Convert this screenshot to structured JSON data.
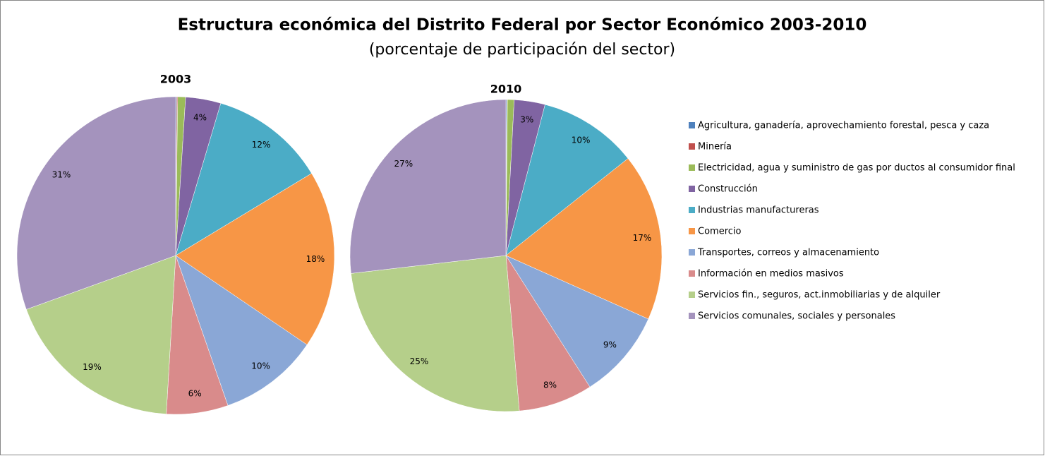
{
  "title": "Estructura económica del Distrito Federal por Sector Económico 2003-2010",
  "subtitle": "(porcentaje de participación del sector)",
  "legend": "right",
  "chart_data": [
    {
      "type": "pie",
      "title": "2003",
      "categories": [
        "Agricultura, ganadería, aprovechamiento forestal, pesca y caza",
        "Minería",
        "Electricidad, agua y suministro de gas por ductos al consumidor final",
        "Construcción",
        "Industrias manufactureras",
        "Comercio",
        "Transportes, correos y almacenamiento",
        "Información en medios masivos",
        "Servicios fin., seguros, act.inmobiliarias y de alquiler",
        "Servicios comunales, sociales y personales"
      ],
      "values": [
        0.1,
        0.1,
        0.8,
        3.6,
        11.8,
        18.2,
        10.2,
        6.3,
        18.6,
        30.6
      ],
      "value_labels": [
        null,
        null,
        null,
        "4%",
        "12%",
        "18%",
        "10%",
        "6%",
        "19%",
        "31%"
      ],
      "colors": [
        "#4f81bd",
        "#c0504d",
        "#9bbb59",
        "#8064a2",
        "#4bacc6",
        "#f79646",
        "#8aa7d6",
        "#d98b8b",
        "#b5cf8a",
        "#a493bd"
      ]
    },
    {
      "type": "pie",
      "title": "2010",
      "categories": [
        "Agricultura, ganadería, aprovechamiento forestal, pesca y caza",
        "Minería",
        "Electricidad, agua y suministro de gas por ductos al consumidor final",
        "Construcción",
        "Industrias manufactureras",
        "Comercio",
        "Transportes, correos y almacenamiento",
        "Información en medios masivos",
        "Servicios fin., seguros, act.inmobiliarias y de alquiler",
        "Servicios comunales, sociales y personales"
      ],
      "values": [
        0.1,
        0.05,
        0.7,
        3.2,
        10.3,
        17.4,
        9.3,
        7.7,
        24.6,
        26.9
      ],
      "value_labels": [
        null,
        null,
        null,
        "3%",
        "10%",
        "17%",
        "9%",
        "8%",
        "25%",
        "27%"
      ],
      "colors": [
        "#4f81bd",
        "#c0504d",
        "#9bbb59",
        "#8064a2",
        "#4bacc6",
        "#f79646",
        "#8aa7d6",
        "#d98b8b",
        "#b5cf8a",
        "#a493bd"
      ]
    }
  ]
}
